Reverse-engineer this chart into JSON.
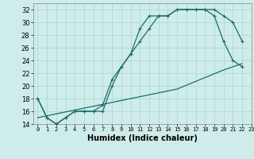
{
  "line1_x": [
    0,
    1,
    2,
    3,
    4,
    5,
    6,
    7,
    8,
    9,
    10,
    11,
    12,
    13,
    14,
    15,
    16,
    17,
    18,
    19,
    20,
    21,
    22
  ],
  "line1_y": [
    18,
    15,
    14,
    15,
    16,
    16,
    16,
    16,
    20,
    23,
    25,
    27,
    29,
    31,
    31,
    32,
    32,
    32,
    32,
    32,
    31,
    30,
    27
  ],
  "line2_x": [
    0,
    1,
    2,
    3,
    4,
    5,
    6,
    7,
    8,
    9,
    10,
    11,
    12,
    13,
    14,
    15,
    16,
    17,
    18,
    19,
    20,
    21,
    22
  ],
  "line2_y": [
    18,
    15,
    14,
    15,
    16,
    16,
    16,
    17,
    21,
    23,
    25,
    29,
    31,
    31,
    31,
    32,
    32,
    32,
    32,
    31,
    27,
    24,
    23
  ],
  "line3_x": [
    0,
    5,
    10,
    15,
    20,
    22
  ],
  "line3_y": [
    15.0,
    16.5,
    18.0,
    19.5,
    22.5,
    23.5
  ],
  "bg_color": "#ceecea",
  "grid_color": "#b2d8d4",
  "line_color": "#1a6e68",
  "xlim": [
    -0.5,
    23
  ],
  "ylim": [
    14,
    33
  ],
  "yticks": [
    14,
    16,
    18,
    20,
    22,
    24,
    26,
    28,
    30,
    32
  ],
  "xticks": [
    0,
    1,
    2,
    3,
    4,
    5,
    6,
    7,
    8,
    9,
    10,
    11,
    12,
    13,
    14,
    15,
    16,
    17,
    18,
    19,
    20,
    21,
    22,
    23
  ],
  "xlabel": "Humidex (Indice chaleur)",
  "marker": "+"
}
